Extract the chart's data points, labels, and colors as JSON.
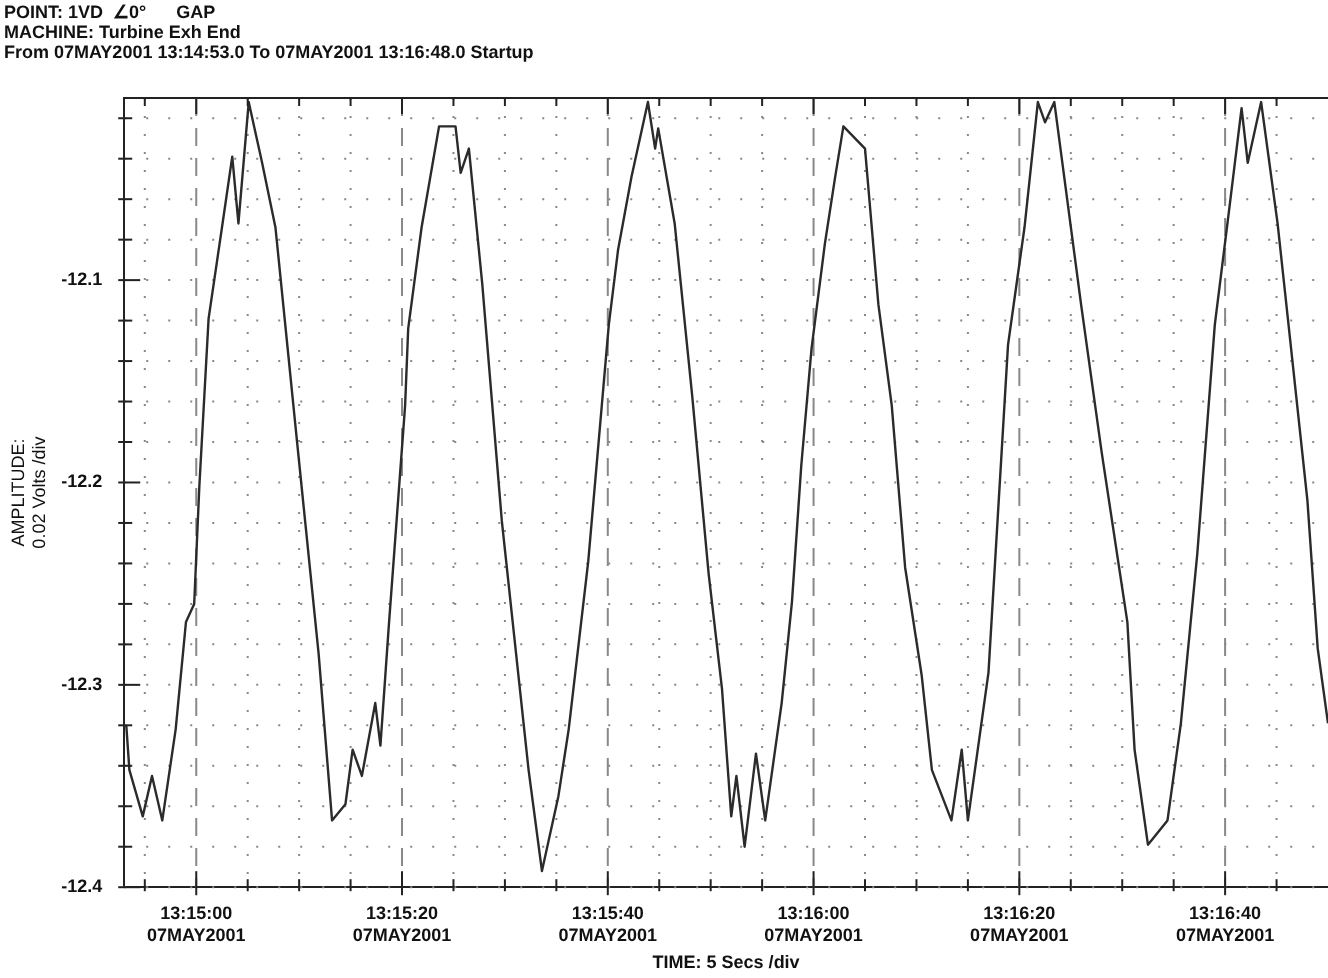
{
  "chart_data": {
    "type": "line",
    "title": "POINT: 1VD  ∠0°      GAP",
    "subtitle": "MACHINE: Turbine Exh End",
    "annotations": [
      "From 07MAY2001 13:14:53.0 To 07MAY2001 13:16:48.0 Startup"
    ],
    "xlabel": "TIME: 5 Secs /div",
    "ylabel": "AMPLITUDE:\n0.02 Volts /div",
    "xlim": [
      "2001-05-07T13:14:53",
      "2001-05-07T13:16:50"
    ],
    "ylim": [
      -12.4,
      -12.01
    ],
    "xticks": [
      {
        "value": "2001-05-07T13:14:55",
        "label": null
      },
      {
        "value": "2001-05-07T13:15:00",
        "label": "13:15:00\n07MAY2001"
      },
      {
        "value": "2001-05-07T13:15:05",
        "label": null
      },
      {
        "value": "2001-05-07T13:15:10",
        "label": null
      },
      {
        "value": "2001-05-07T13:15:15",
        "label": null
      },
      {
        "value": "2001-05-07T13:15:20",
        "label": "13:15:20\n07MAY2001"
      },
      {
        "value": "2001-05-07T13:15:25",
        "label": null
      },
      {
        "value": "2001-05-07T13:15:30",
        "label": null
      },
      {
        "value": "2001-05-07T13:15:35",
        "label": null
      },
      {
        "value": "2001-05-07T13:15:40",
        "label": "13:15:40\n07MAY2001"
      },
      {
        "value": "2001-05-07T13:15:45",
        "label": null
      },
      {
        "value": "2001-05-07T13:15:50",
        "label": null
      },
      {
        "value": "2001-05-07T13:15:55",
        "label": null
      },
      {
        "value": "2001-05-07T13:16:00",
        "label": "13:16:00\n07MAY2001"
      },
      {
        "value": "2001-05-07T13:16:05",
        "label": null
      },
      {
        "value": "2001-05-07T13:16:10",
        "label": null
      },
      {
        "value": "2001-05-07T13:16:15",
        "label": null
      },
      {
        "value": "2001-05-07T13:16:20",
        "label": "13:16:20\n07MAY2001"
      },
      {
        "value": "2001-05-07T13:16:25",
        "label": null
      },
      {
        "value": "2001-05-07T13:16:30",
        "label": null
      },
      {
        "value": "2001-05-07T13:16:35",
        "label": null
      },
      {
        "value": "2001-05-07T13:16:40",
        "label": "13:16:40\n07MAY2001"
      },
      {
        "value": "2001-05-07T13:16:45",
        "label": null
      }
    ],
    "yticks": [
      -12.4,
      {
        "value": -12.38,
        "label": null
      },
      {
        "value": -12.36,
        "label": null
      },
      {
        "value": -12.34,
        "label": null
      },
      {
        "value": -12.32,
        "label": null
      },
      -12.3,
      {
        "value": -12.28,
        "label": null
      },
      {
        "value": -12.26,
        "label": null
      },
      {
        "value": -12.24,
        "label": null
      },
      {
        "value": -12.22,
        "label": null
      },
      -12.2,
      {
        "value": -12.18,
        "label": null
      },
      {
        "value": -12.16,
        "label": null
      },
      {
        "value": -12.14,
        "label": null
      },
      {
        "value": -12.12,
        "label": null
      },
      -12.1,
      {
        "value": -12.08,
        "label": null
      },
      {
        "value": -12.06,
        "label": null
      },
      {
        "value": -12.04,
        "label": null
      },
      {
        "value": -12.02,
        "label": null
      }
    ],
    "grid": true,
    "marker": "none",
    "line_style": "solid",
    "series": [
      {
        "color": "#2b2b2b",
        "x": [
          "2001-05-07T13:14:53.2",
          "2001-05-07T13:14:53.5",
          "2001-05-07T13:14:54.8",
          "2001-05-07T13:14:55.7",
          "2001-05-07T13:14:56.7",
          "2001-05-07T13:14:58.0",
          "2001-05-07T13:14:59.0",
          "2001-05-07T13:14:59.8",
          "2001-05-07T13:15:00.3",
          "2001-05-07T13:15:01.2",
          "2001-05-07T13:15:02.5",
          "2001-05-07T13:15:03.5",
          "2001-05-07T13:15:04.1",
          "2001-05-07T13:15:05.1",
          "2001-05-07T13:15:06.4",
          "2001-05-07T13:15:07.7",
          "2001-05-07T13:15:09.7",
          "2001-05-07T13:15:11.9",
          "2001-05-07T13:15:13.2",
          "2001-05-07T13:15:14.5",
          "2001-05-07T13:15:15.2",
          "2001-05-07T13:15:16.1",
          "2001-05-07T13:15:17.4",
          "2001-05-07T13:15:17.9",
          "2001-05-07T13:15:18.7",
          "2001-05-07T13:15:20.3",
          "2001-05-07T13:15:20.6",
          "2001-05-07T13:15:21.9",
          "2001-05-07T13:15:23.6",
          "2001-05-07T13:15:25.2",
          "2001-05-07T13:15:25.7",
          "2001-05-07T13:15:26.5",
          "2001-05-07T13:15:27.8",
          "2001-05-07T13:15:29.7",
          "2001-05-07T13:15:32.3",
          "2001-05-07T13:15:33.6",
          "2001-05-07T13:15:35.2",
          "2001-05-07T13:15:36.2",
          "2001-05-07T13:15:38.1",
          "2001-05-07T13:15:40.1",
          "2001-05-07T13:15:41.0",
          "2001-05-07T13:15:42.3",
          "2001-05-07T13:15:43.9",
          "2001-05-07T13:15:44.6",
          "2001-05-07T13:15:44.9",
          "2001-05-07T13:15:46.5",
          "2001-05-07T13:15:48.2",
          "2001-05-07T13:15:49.8",
          "2001-05-07T13:15:51.1",
          "2001-05-07T13:15:52.0",
          "2001-05-07T13:15:52.5",
          "2001-05-07T13:15:53.3",
          "2001-05-07T13:15:54.4",
          "2001-05-07T13:15:55.3",
          "2001-05-07T13:15:56.9",
          "2001-05-07T13:15:57.9",
          "2001-05-07T13:15:58.8",
          "2001-05-07T13:15:59.8",
          "2001-05-07T13:16:01.1",
          "2001-05-07T13:16:02.1",
          "2001-05-07T13:16:02.9",
          "2001-05-07T13:16:05.0",
          "2001-05-07T13:16:06.3",
          "2001-05-07T13:16:07.6",
          "2001-05-07T13:16:08.9",
          "2001-05-07T13:16:10.5",
          "2001-05-07T13:16:11.5",
          "2001-05-07T13:16:13.4",
          "2001-05-07T13:16:14.4",
          "2001-05-07T13:16:15.0",
          "2001-05-07T13:16:17.0",
          "2001-05-07T13:16:18.9",
          "2001-05-07T13:16:20.5",
          "2001-05-07T13:16:21.8",
          "2001-05-07T13:16:22.5",
          "2001-05-07T13:16:23.4",
          "2001-05-07T13:16:26.0",
          "2001-05-07T13:16:28.0",
          "2001-05-07T13:16:30.5",
          "2001-05-07T13:16:31.2",
          "2001-05-07T13:16:32.5",
          "2001-05-07T13:16:34.4",
          "2001-05-07T13:16:35.7",
          "2001-05-07T13:16:37.3",
          "2001-05-07T13:16:39.0",
          "2001-05-07T13:16:40.3",
          "2001-05-07T13:16:41.6",
          "2001-05-07T13:16:42.2",
          "2001-05-07T13:16:43.5",
          "2001-05-07T13:16:45.1",
          "2001-05-07T13:16:46.1",
          "2001-05-07T13:16:48.0",
          "2001-05-07T13:16:49.0",
          "2001-05-07T13:16:50.0"
        ],
        "values": [
          -12.32,
          -12.342,
          -12.365,
          -12.345,
          -12.367,
          -12.322,
          -12.269,
          -12.26,
          -12.202,
          -12.119,
          -12.074,
          -12.039,
          -12.072,
          -12.012,
          -12.042,
          -12.074,
          -12.175,
          -12.285,
          -12.367,
          -12.359,
          -12.332,
          -12.345,
          -12.309,
          -12.33,
          -12.272,
          -12.162,
          -12.124,
          -12.074,
          -12.024,
          -12.024,
          -12.047,
          -12.035,
          -12.102,
          -12.219,
          -12.342,
          -12.392,
          -12.355,
          -12.322,
          -12.239,
          -12.122,
          -12.085,
          -12.049,
          -12.012,
          -12.035,
          -12.025,
          -12.072,
          -12.157,
          -12.245,
          -12.302,
          -12.365,
          -12.345,
          -12.38,
          -12.334,
          -12.367,
          -12.309,
          -12.259,
          -12.192,
          -12.134,
          -12.082,
          -12.049,
          -12.024,
          -12.035,
          -12.112,
          -12.162,
          -12.242,
          -12.295,
          -12.342,
          -12.367,
          -12.332,
          -12.367,
          -12.294,
          -12.132,
          -12.074,
          -12.012,
          -12.022,
          -12.012,
          -12.112,
          -12.185,
          -12.269,
          -12.332,
          -12.379,
          -12.367,
          -12.319,
          -12.235,
          -12.122,
          -12.069,
          -12.015,
          -12.042,
          -12.012,
          -12.072,
          -12.119,
          -12.209,
          -12.282,
          -12.319
        ]
      }
    ]
  }
}
